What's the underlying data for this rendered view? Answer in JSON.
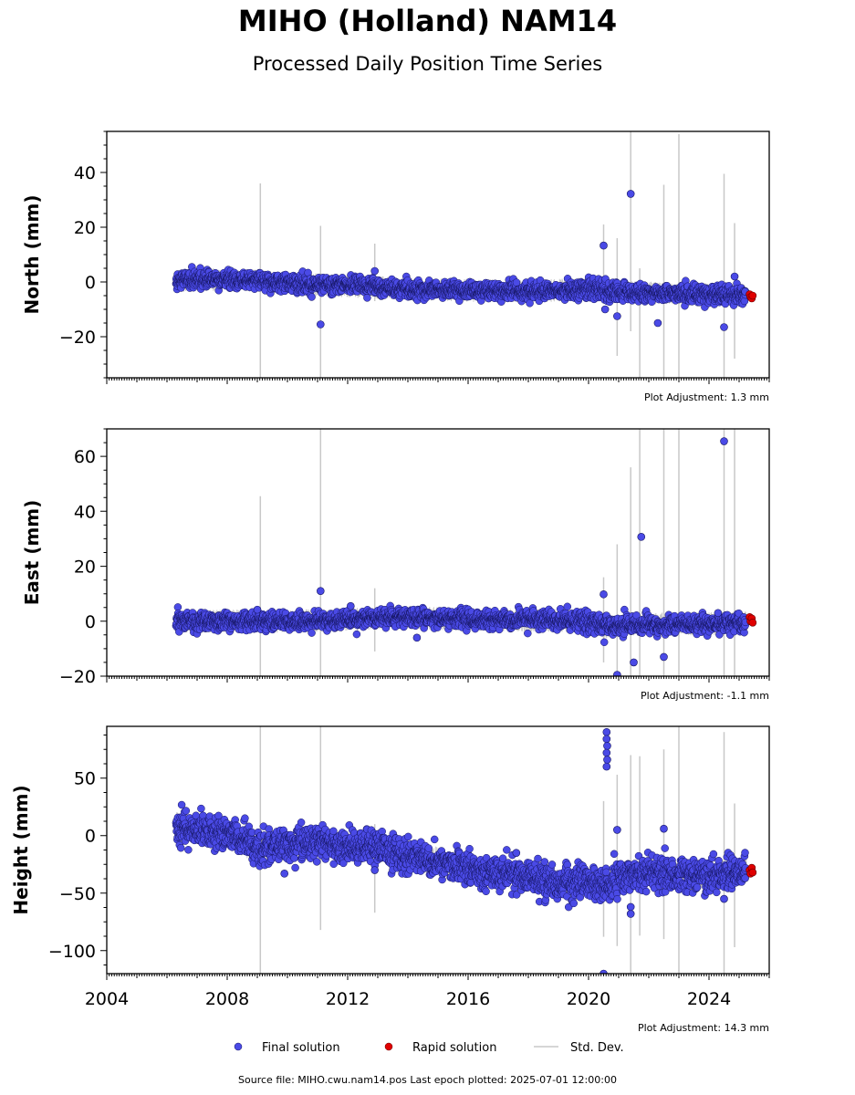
{
  "title": "MIHO (Holland) NAM14",
  "subtitle": "Processed Daily Position Time Series",
  "footer": "Source file: MIHO.cwu.nam14.pos  Last epoch plotted: 2025-07-01 12:00:00",
  "colors": {
    "final": "#4a4ae6",
    "rapid": "#e00000",
    "stddev": "#c8c8c8"
  },
  "chart_data": [
    {
      "type": "scatter",
      "ylabel": "North (mm)",
      "xlim": [
        2004,
        2026
      ],
      "ylim": [
        -35,
        55
      ],
      "yticks": [
        40,
        20,
        0,
        -20
      ],
      "yticklabels": [
        "40",
        "20",
        "0",
        "−20"
      ],
      "annotation": "Plot Adjustment: 1.3 mm",
      "final_trend": [
        [
          2006.3,
          0.5
        ],
        [
          2008,
          1.0
        ],
        [
          2010,
          -0.5
        ],
        [
          2012,
          -1.5
        ],
        [
          2014,
          -2.5
        ],
        [
          2016,
          -3
        ],
        [
          2018,
          -3.5
        ],
        [
          2020,
          -2.5
        ],
        [
          2020.7,
          -3.5
        ],
        [
          2022,
          -4
        ],
        [
          2024,
          -4.5
        ],
        [
          2025.2,
          -5
        ]
      ],
      "final_outliers": [
        [
          2011.1,
          -15.5
        ],
        [
          2012.9,
          4
        ],
        [
          2020.5,
          13.3
        ],
        [
          2020.55,
          -10
        ],
        [
          2020.95,
          -12.5
        ],
        [
          2021.4,
          32.2
        ],
        [
          2022.3,
          -15
        ],
        [
          2024.5,
          -16.5
        ],
        [
          2024.85,
          2
        ],
        [
          2025.2,
          -3.5
        ]
      ],
      "rapid": [
        [
          2025.35,
          -4.5
        ],
        [
          2025.38,
          -5.5
        ],
        [
          2025.42,
          -6
        ],
        [
          2025.45,
          -5
        ]
      ],
      "stddev_bars": [
        [
          2009.1,
          -35,
          36
        ],
        [
          2011.1,
          -35,
          20.5
        ],
        [
          2012.9,
          -7,
          14
        ],
        [
          2020.5,
          -6,
          21
        ],
        [
          2020.95,
          -27,
          16
        ],
        [
          2021.4,
          -18,
          55
        ],
        [
          2021.7,
          -35,
          5
        ],
        [
          2022.5,
          -35,
          35.5
        ],
        [
          2023,
          -35,
          54
        ],
        [
          2024.5,
          -35,
          39.5
        ],
        [
          2024.85,
          -28,
          21.5
        ]
      ]
    },
    {
      "type": "scatter",
      "ylabel": "East (mm)",
      "xlim": [
        2004,
        2026
      ],
      "ylim": [
        -20,
        70
      ],
      "yticks": [
        60,
        40,
        20,
        0,
        -20
      ],
      "yticklabels": [
        "60",
        "40",
        "20",
        "0",
        "−20"
      ],
      "annotation": "Plot Adjustment: -1.1 mm",
      "final_trend": [
        [
          2006.3,
          0
        ],
        [
          2010,
          0
        ],
        [
          2012,
          0.5
        ],
        [
          2014,
          1.5
        ],
        [
          2016,
          0.5
        ],
        [
          2018,
          0.5
        ],
        [
          2020,
          0
        ],
        [
          2020.6,
          -2
        ],
        [
          2021.2,
          -1.5
        ],
        [
          2022,
          -1
        ],
        [
          2024,
          -1
        ],
        [
          2025.2,
          -0.5
        ]
      ],
      "final_outliers": [
        [
          2009,
          4.2
        ],
        [
          2011.1,
          11
        ],
        [
          2012.1,
          5.5
        ],
        [
          2014.3,
          -6
        ],
        [
          2020.5,
          9.8
        ],
        [
          2020.95,
          -19.5
        ],
        [
          2021.5,
          -15
        ],
        [
          2021.75,
          30.7
        ],
        [
          2022.5,
          -13
        ],
        [
          2024.5,
          65.5
        ],
        [
          2024.3,
          3
        ]
      ],
      "rapid": [
        [
          2025.35,
          1.5
        ],
        [
          2025.38,
          0
        ],
        [
          2025.42,
          1
        ],
        [
          2025.45,
          -0.5
        ]
      ],
      "stddev_bars": [
        [
          2009.1,
          -20,
          45.5
        ],
        [
          2011.1,
          -20,
          70
        ],
        [
          2012.9,
          -11,
          12
        ],
        [
          2020.5,
          -15,
          16
        ],
        [
          2020.95,
          -20,
          28
        ],
        [
          2021.4,
          -20,
          56
        ],
        [
          2021.7,
          -20,
          70
        ],
        [
          2022.5,
          -20,
          70
        ],
        [
          2023,
          -20,
          70
        ],
        [
          2024.5,
          -20,
          70
        ],
        [
          2024.85,
          -20,
          70
        ]
      ]
    },
    {
      "type": "scatter",
      "ylabel": "Height (mm)",
      "xlim": [
        2004,
        2026
      ],
      "ylim": [
        -120,
        95
      ],
      "yticks": [
        50,
        0,
        -50,
        -100
      ],
      "yticklabels": [
        "50",
        "0",
        "−50",
        "−100"
      ],
      "xticks": [
        2004,
        2008,
        2012,
        2016,
        2020,
        2024
      ],
      "xticklabels": [
        "2004",
        "2008",
        "2012",
        "2016",
        "2020",
        "2024"
      ],
      "annotation": "Plot Adjustment: 14.3 mm",
      "final_trend": [
        [
          2006.3,
          8
        ],
        [
          2007,
          5
        ],
        [
          2008,
          2
        ],
        [
          2009,
          -12
        ],
        [
          2010,
          -8
        ],
        [
          2011,
          -4
        ],
        [
          2012,
          -12
        ],
        [
          2013,
          -8
        ],
        [
          2014,
          -18
        ],
        [
          2015,
          -22
        ],
        [
          2016,
          -30
        ],
        [
          2017,
          -32
        ],
        [
          2018,
          -36
        ],
        [
          2019,
          -42
        ],
        [
          2020,
          -40
        ],
        [
          2020.6,
          -45
        ],
        [
          2021,
          -38
        ],
        [
          2022,
          -32
        ],
        [
          2023,
          -34
        ],
        [
          2024,
          -36
        ],
        [
          2025.2,
          -30
        ]
      ],
      "final_outliers": [
        [
          2009.9,
          -33
        ],
        [
          2012.9,
          -30
        ],
        [
          2017.6,
          -15
        ],
        [
          2020.5,
          -120
        ],
        [
          2020.6,
          90
        ],
        [
          2020.6,
          84
        ],
        [
          2020.62,
          78
        ],
        [
          2020.6,
          72
        ],
        [
          2020.62,
          66
        ],
        [
          2020.6,
          60
        ],
        [
          2020.95,
          5
        ],
        [
          2021.4,
          -68
        ],
        [
          2021.4,
          -62
        ],
        [
          2022.5,
          6
        ],
        [
          2024.5,
          -55
        ],
        [
          2025.2,
          -37
        ]
      ],
      "rapid": [
        [
          2025.35,
          -30
        ],
        [
          2025.38,
          -33
        ],
        [
          2025.42,
          -28
        ],
        [
          2025.45,
          -32
        ]
      ],
      "stddev_bars": [
        [
          2009.1,
          -120,
          95
        ],
        [
          2011.1,
          -82,
          95
        ],
        [
          2012.9,
          -67,
          10
        ],
        [
          2020.5,
          -88,
          30
        ],
        [
          2020.95,
          -96,
          53
        ],
        [
          2021.4,
          -120,
          70
        ],
        [
          2021.7,
          -87,
          69
        ],
        [
          2022.5,
          -90,
          75
        ],
        [
          2023,
          -120,
          95
        ],
        [
          2024.5,
          -120,
          90
        ],
        [
          2024.85,
          -97,
          28
        ]
      ]
    }
  ],
  "legend": [
    {
      "label": "Final solution",
      "kind": "marker",
      "color": "#4a4ae6"
    },
    {
      "label": "Rapid solution",
      "kind": "marker",
      "color": "#e00000"
    },
    {
      "label": "Std. Dev.",
      "kind": "line",
      "color": "#c8c8c8"
    }
  ]
}
